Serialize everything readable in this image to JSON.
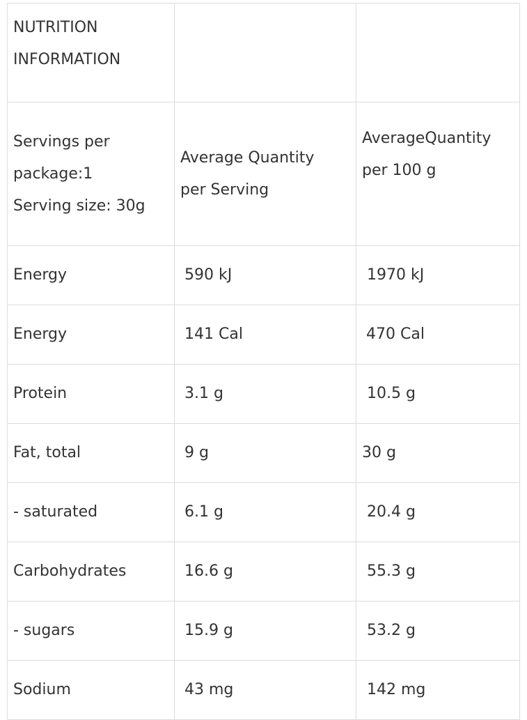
{
  "table": {
    "title_lines": [
      "NUTRITION",
      "INFORMATION"
    ],
    "header": {
      "col1_lines": [
        "Servings per",
        "package:1",
        "Serving size: 30g"
      ],
      "col2_lines": [
        "Average Quantity",
        "per Serving"
      ],
      "col3_lines": [
        "AverageQuantity",
        "per 100 g"
      ]
    },
    "rows": [
      {
        "name": "Energy",
        "per_serving": "590 kJ",
        "per_100g": "1970 kJ"
      },
      {
        "name": "Energy",
        "per_serving": "141 Cal",
        "per_100g": "470 Cal"
      },
      {
        "name": "Protein",
        "per_serving": "3.1 g",
        "per_100g": "10.5 g"
      },
      {
        "name": "Fat, total",
        "per_serving": "9 g",
        "per_100g": "30 g"
      },
      {
        "name": "- saturated",
        "per_serving": "6.1 g",
        "per_100g": "20.4 g"
      },
      {
        "name": "Carbohydrates",
        "per_serving": "16.6 g",
        "per_100g": "55.3 g"
      },
      {
        "name": "- sugars",
        "per_serving": "15.9 g",
        "per_100g": "53.2 g"
      },
      {
        "name": "Sodium",
        "per_serving": "43 mg",
        "per_100g": "142 mg"
      }
    ]
  }
}
